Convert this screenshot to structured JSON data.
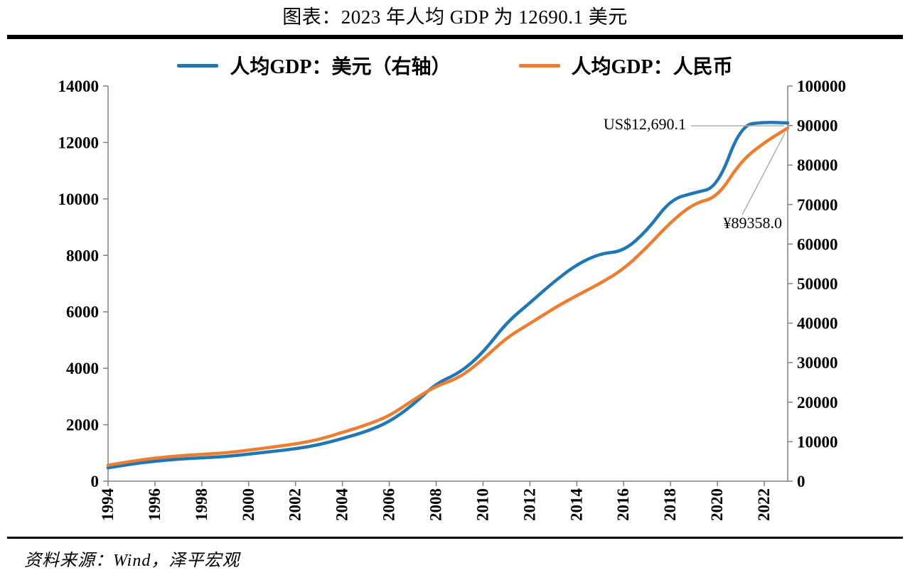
{
  "title": "图表：2023 年人均 GDP 为 12690.1 美元",
  "source": "资料来源：Wind，泽平宏观",
  "colors": {
    "usd_line": "#1F77B4",
    "rmb_line": "#ED7D31",
    "axis": "#808080",
    "annotation_line": "#ADADAD"
  },
  "legend": [
    {
      "label": "人均GDP：美元（右轴）",
      "color": "#1F77B4"
    },
    {
      "label": "人均GDP：人民币",
      "color": "#ED7D31"
    }
  ],
  "chart_data": {
    "type": "line",
    "title": "图表：2023 年人均 GDP 为 12690.1 美元",
    "xlabel": "",
    "ylabel_left": "",
    "ylabel_right": "",
    "legend_position": "top",
    "grid": false,
    "x": [
      1994,
      1995,
      1996,
      1997,
      1998,
      1999,
      2000,
      2001,
      2002,
      2003,
      2004,
      2005,
      2006,
      2007,
      2008,
      2009,
      2010,
      2011,
      2012,
      2013,
      2014,
      2015,
      2016,
      2017,
      2018,
      2019,
      2020,
      2021,
      2022,
      2023
    ],
    "x_ticks": [
      1994,
      1996,
      1998,
      2000,
      2002,
      2004,
      2006,
      2008,
      2010,
      2012,
      2014,
      2016,
      2018,
      2020,
      2022
    ],
    "left_axis": {
      "min": 0,
      "max": 14000,
      "step": 2000
    },
    "right_axis": {
      "min": 0,
      "max": 100000,
      "step": 10000
    },
    "series": [
      {
        "name": "人均GDP：美元（右轴）",
        "axis": "left",
        "color": "#1F77B4",
        "values": [
          473,
          610,
          709,
          782,
          829,
          873,
          959,
          1053,
          1149,
          1289,
          1509,
          1753,
          2099,
          2694,
          3468,
          3832,
          4550,
          5618,
          6317,
          7051,
          7679,
          8067,
          8148,
          8879,
          9977,
          10217,
          10409,
          12618,
          12720,
          12690.1
        ]
      },
      {
        "name": "人均GDP：人民币",
        "axis": "right",
        "color": "#ED7D31",
        "values": [
          4044,
          5046,
          5846,
          6420,
          6796,
          7159,
          7858,
          8622,
          9398,
          10542,
          12336,
          14185,
          16500,
          20494,
          24100,
          26180,
          30808,
          36302,
          39874,
          43684,
          47005,
          50028,
          53680,
          59201,
          65534,
          70328,
          71828,
          80976,
          85698,
          89358
        ]
      }
    ],
    "annotations": [
      {
        "text": "US$12,690.1",
        "series": 0,
        "x": 2023,
        "y": 12690.1
      },
      {
        "text": "¥89358.0",
        "series": 1,
        "x": 2023,
        "y": 89358.0
      }
    ]
  }
}
